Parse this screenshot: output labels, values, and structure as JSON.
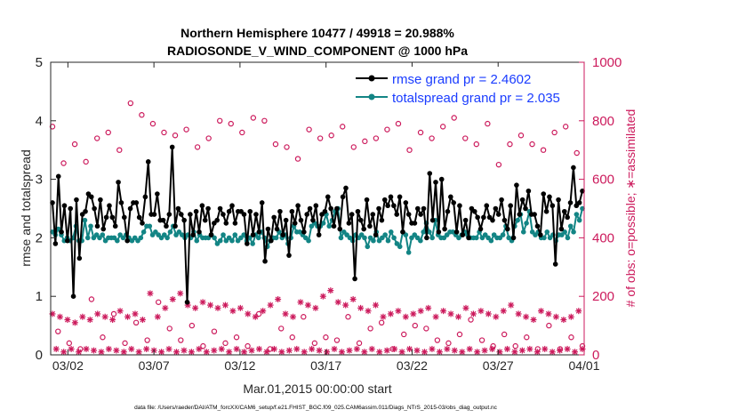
{
  "chart_data": {
    "type": "line",
    "title": "Northern Hemisphere 10477 / 49918 = 20.988%",
    "subtitle": "RADIOSONDE_V_WIND_COMPONENT @ 1000 hPa",
    "xlabel": "Mar.01,2015 00:00:00 start",
    "ylabel_left": "rmse and totalspread",
    "ylabel_right": "# of obs: o=possible; ∗=assimilated",
    "footnote": "data file: /Users/raeder/DAI/ATM_forcXX/CAM6_setup/f.e21.FHIST_BGC.f09_025.CAM6assim.011/Diags_NTrS_2015-03/obs_diag_output.nc",
    "xlim": [
      0,
      31
    ],
    "ylim_left": [
      0,
      5
    ],
    "ylim_right": [
      0,
      1000
    ],
    "x_ticks": [
      {
        "x": 1,
        "label": "03/02"
      },
      {
        "x": 6,
        "label": "03/07"
      },
      {
        "x": 11,
        "label": "03/12"
      },
      {
        "x": 16,
        "label": "03/17"
      },
      {
        "x": 21,
        "label": "03/22"
      },
      {
        "x": 26,
        "label": "03/27"
      },
      {
        "x": 31,
        "label": "04/01"
      }
    ],
    "y_ticks_left": [
      0,
      1,
      2,
      3,
      4,
      5
    ],
    "y_ticks_right": [
      0,
      200,
      400,
      600,
      800,
      1000
    ],
    "legend_position": "top-right",
    "colors": {
      "rmse": "#000000",
      "spread": "#138585",
      "obs": "#cc1a5c",
      "legend_text": "#1a3cff"
    },
    "series": [
      {
        "name": "rmse grand pr = 2.4602",
        "axis": "left",
        "values": [
          2.6,
          1.9,
          3.05,
          2.1,
          2.55,
          1.95,
          2.5,
          1.0,
          2.65,
          1.65,
          2.4,
          2.45,
          2.75,
          2.7,
          2.5,
          2.2,
          2.65,
          2.15,
          2.35,
          2.55,
          2.35,
          2.2,
          2.95,
          2.6,
          2.35,
          1.95,
          2.5,
          2.6,
          2.6,
          2.35,
          2.25,
          2.7,
          3.3,
          2.4,
          2.4,
          2.75,
          2.3,
          2.3,
          2.2,
          2.4,
          3.55,
          2.2,
          2.5,
          2.4,
          2.3,
          0.9,
          2.4,
          2.05,
          2.45,
          2.1,
          2.55,
          2.3,
          2.5,
          2.05,
          2.25,
          2.3,
          2.5,
          2.4,
          2.25,
          2.45,
          2.55,
          2.25,
          2.45,
          2.45,
          2.4,
          1.9,
          2.45,
          2.05,
          2.4,
          2.1,
          2.6,
          1.6,
          2.15,
          1.95,
          2.35,
          2.15,
          2.45,
          2.05,
          2.3,
          1.7,
          2.45,
          2.25,
          2.55,
          2.3,
          2.1,
          2.4,
          2.5,
          2.3,
          2.55,
          2.05,
          2.4,
          2.45,
          2.7,
          2.5,
          2.2,
          2.5,
          2.15,
          2.7,
          2.85,
          2.25,
          2.4,
          1.3,
          2.45,
          2.3,
          2.15,
          2.65,
          2.2,
          2.4,
          2.05,
          2.5,
          2.3,
          2.65,
          2.55,
          2.7,
          2.55,
          2.4,
          2.7,
          2.1,
          2.6,
          2.4,
          2.25,
          2.25,
          2.5,
          2.4,
          2.5,
          2.0,
          3.1,
          2.3,
          2.95,
          2.1,
          3.0,
          2.15,
          2.45,
          2.7,
          2.6,
          2.1,
          2.55,
          2.05,
          2.3,
          2.0,
          2.5,
          2.45,
          2.35,
          2.15,
          2.35,
          2.55,
          2.35,
          2.3,
          2.5,
          2.4,
          2.65,
          2.3,
          2.15,
          2.55,
          2.0,
          2.9,
          2.4,
          2.65,
          2.5,
          2.8,
          2.4,
          2.4,
          2.2,
          2.05,
          2.75,
          2.45,
          2.7,
          2.55,
          1.55,
          2.65,
          2.15,
          2.45,
          2.35,
          2.6,
          3.2,
          2.55,
          2.6,
          2.8
        ]
      },
      {
        "name": "totalspread grand pr = 2.035",
        "axis": "left",
        "values": [
          2.1,
          2.05,
          2.15,
          2.05,
          1.95,
          2.0,
          1.95,
          2.0,
          2.2,
          1.95,
          1.95,
          2.3,
          2.0,
          2.2,
          2.0,
          2.05,
          2.0,
          2.05,
          1.95,
          2.0,
          2.0,
          2.0,
          1.95,
          2.05,
          2.0,
          2.05,
          2.0,
          1.95,
          2.0,
          1.95,
          2.0,
          2.1,
          2.2,
          2.2,
          2.05,
          2.1,
          2.05,
          2.0,
          2.05,
          2.0,
          2.1,
          2.2,
          2.05,
          2.1,
          2.05,
          2.0,
          2.05,
          2.0,
          2.1,
          1.95,
          2.05,
          2.0,
          2.0,
          2.0,
          2.05,
          2.0,
          1.9,
          1.95,
          2.05,
          1.95,
          2.0,
          1.95,
          2.05,
          1.95,
          2.0,
          2.05,
          1.95,
          2.0,
          1.9,
          2.05,
          2.0,
          2.1,
          2.0,
          1.85,
          1.95,
          2.0,
          2.0,
          2.1,
          2.0,
          2.05,
          1.9,
          2.0,
          2.2,
          2.1,
          2.1,
          2.05,
          2.0,
          1.95,
          2.2,
          2.25,
          2.2,
          2.2,
          2.25,
          2.4,
          2.2,
          2.3,
          2.45,
          2.5,
          2.0,
          2.1,
          2.05,
          2.0,
          1.95,
          2.05,
          2.0,
          2.05,
          2.0,
          1.85,
          2.0,
          1.95,
          2.1,
          1.95,
          2.0,
          2.05,
          1.95,
          2.1,
          2.0,
          1.9,
          1.85,
          2.1,
          2.05,
          1.75,
          2.0,
          2.05,
          2.0,
          1.95,
          2.1,
          2.25,
          2.1,
          2.0,
          2.3,
          2.05,
          2.0,
          2.0,
          2.05,
          2.1,
          2.1,
          2.05,
          2.0,
          2.05,
          2.1,
          2.05,
          2.0,
          2.0,
          2.0,
          2.1,
          2.0,
          2.05,
          2.0,
          1.95,
          2.05,
          2.0,
          2.0,
          2.05,
          2.2,
          2.0,
          1.95,
          2.2,
          2.3,
          2.4,
          2.1,
          2.25,
          2.45,
          2.1,
          2.05,
          2.1,
          2.0,
          2.0,
          2.1,
          2.0,
          2.05,
          1.95,
          2.05,
          2.05,
          2.1,
          2.0,
          2.2,
          2.1,
          2.4,
          2.3,
          2.5
        ]
      },
      {
        "name": "possible",
        "axis": "right",
        "marker": "o",
        "values": [
          780,
          80,
          655,
          40,
          720,
          20,
          660,
          190,
          740,
          60,
          760,
          140,
          700,
          40,
          860,
          110,
          820,
          50,
          790,
          180,
          760,
          90,
          750,
          50,
          770,
          100,
          710,
          30,
          740,
          80,
          800,
          40,
          790,
          60,
          760,
          30,
          810,
          140,
          800,
          20,
          720,
          90,
          710,
          60,
          670,
          130,
          770,
          40,
          740,
          60,
          750,
          50,
          780,
          130,
          710,
          40,
          730,
          90,
          740,
          110,
          770,
          20,
          790,
          70,
          700,
          100,
          760,
          90,
          740,
          50,
          780,
          40,
          810,
          70,
          740,
          120,
          720,
          50,
          790,
          30,
          650,
          70,
          720,
          30,
          750,
          60,
          720,
          20,
          700,
          100,
          760,
          20,
          780,
          60,
          690,
          30
        ]
      },
      {
        "name": "assimilated",
        "axis": "right",
        "marker": "*",
        "values": [
          140,
          20,
          130,
          10,
          120,
          20,
          110,
          10,
          130,
          20,
          120,
          15,
          140,
          10,
          130,
          20,
          120,
          15,
          150,
          10,
          130,
          20,
          140,
          10,
          120,
          20,
          210,
          15,
          130,
          10,
          160,
          20,
          190,
          10,
          210,
          15,
          170,
          10,
          160,
          20,
          180,
          10,
          170,
          15,
          160,
          20,
          170,
          10,
          150,
          20,
          160,
          10,
          140,
          15,
          130,
          20,
          150,
          10,
          170,
          20,
          190,
          10,
          140,
          15,
          130,
          20,
          180,
          10,
          170,
          20,
          160,
          15,
          200,
          10,
          220,
          20,
          180,
          10,
          170,
          15,
          190,
          20,
          160,
          10,
          150,
          20,
          170,
          10,
          130,
          15,
          140,
          20,
          150,
          10,
          130,
          20,
          140,
          15,
          150,
          10,
          160,
          20,
          130,
          10,
          150,
          20,
          140,
          15,
          130,
          10,
          160,
          20,
          140,
          10,
          150,
          15,
          140,
          20,
          130,
          10,
          150,
          20,
          170,
          10,
          140,
          15,
          130,
          20,
          120,
          10,
          150,
          20,
          140,
          10,
          130,
          15,
          120,
          20,
          130,
          10,
          150,
          20
        ]
      }
    ]
  }
}
